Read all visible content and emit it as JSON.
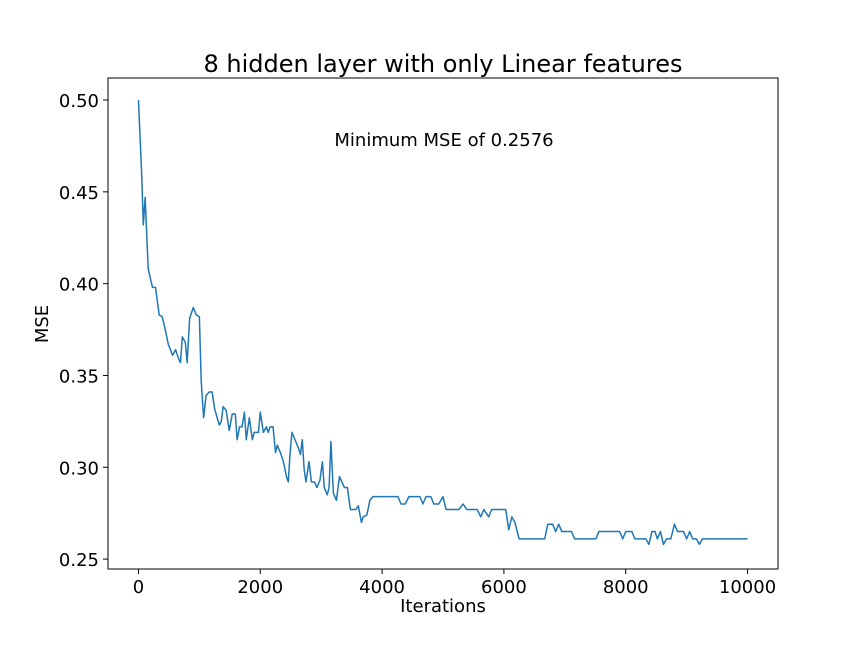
{
  "chart_data": {
    "type": "line",
    "title": "8 hidden layer with only Linear features",
    "annotation": "Minimum MSE of 0.2576",
    "xlabel": "Iterations",
    "ylabel": "MSE",
    "xlim": [
      -500,
      10500
    ],
    "ylim": [
      0.2446,
      0.512
    ],
    "xticks": [
      0,
      2000,
      4000,
      6000,
      8000,
      10000
    ],
    "yticks": [
      0.25,
      {
        "value": 0.3,
        "label": "0.30"
      },
      0.35,
      {
        "value": 0.4,
        "label": "0.40"
      },
      0.45,
      {
        "value": 0.5,
        "label": "0.50"
      }
    ],
    "grid": false,
    "series": [
      {
        "name": "MSE",
        "color": "#1f77b4",
        "x": [
          0,
          50,
          80,
          110,
          160,
          230,
          280,
          340,
          390,
          440,
          490,
          560,
          610,
          660,
          690,
          720,
          770,
          800,
          840,
          900,
          950,
          1000,
          1030,
          1070,
          1110,
          1160,
          1210,
          1250,
          1300,
          1330,
          1360,
          1390,
          1440,
          1490,
          1540,
          1590,
          1620,
          1660,
          1700,
          1740,
          1770,
          1820,
          1870,
          1900,
          1970,
          2000,
          2050,
          2100,
          2130,
          2160,
          2210,
          2250,
          2280,
          2330,
          2380,
          2430,
          2460,
          2490,
          2520,
          2570,
          2620,
          2660,
          2690,
          2720,
          2750,
          2800,
          2840,
          2890,
          2930,
          2980,
          3020,
          3050,
          3100,
          3130,
          3160,
          3200,
          3250,
          3300,
          3340,
          3380,
          3430,
          3480,
          3570,
          3610,
          3660,
          3690,
          3750,
          3800,
          3850,
          4260,
          4310,
          4380,
          4440,
          4620,
          4670,
          4720,
          4800,
          4850,
          4930,
          5000,
          5050,
          5260,
          5330,
          5390,
          5560,
          5620,
          5670,
          5750,
          5800,
          6030,
          6080,
          6130,
          6180,
          6250,
          6670,
          6720,
          6800,
          6850,
          6900,
          6950,
          7110,
          7160,
          7510,
          7560,
          7900,
          7950,
          8000,
          8100,
          8150,
          8330,
          8380,
          8430,
          8480,
          8520,
          8570,
          8620,
          8670,
          8740,
          8800,
          8850,
          8950,
          9000,
          9050,
          9100,
          9160,
          9210,
          9260,
          10000
        ],
        "values": [
          0.5,
          0.462,
          0.432,
          0.447,
          0.408,
          0.398,
          0.398,
          0.383,
          0.382,
          0.375,
          0.367,
          0.361,
          0.364,
          0.359,
          0.357,
          0.371,
          0.368,
          0.357,
          0.381,
          0.387,
          0.383,
          0.382,
          0.347,
          0.327,
          0.339,
          0.341,
          0.341,
          0.332,
          0.326,
          0.323,
          0.325,
          0.333,
          0.331,
          0.32,
          0.329,
          0.329,
          0.315,
          0.322,
          0.322,
          0.33,
          0.315,
          0.327,
          0.315,
          0.319,
          0.319,
          0.33,
          0.319,
          0.322,
          0.319,
          0.322,
          0.322,
          0.308,
          0.312,
          0.308,
          0.303,
          0.295,
          0.292,
          0.308,
          0.319,
          0.315,
          0.311,
          0.307,
          0.315,
          0.299,
          0.292,
          0.303,
          0.292,
          0.292,
          0.289,
          0.293,
          0.303,
          0.289,
          0.285,
          0.289,
          0.314,
          0.286,
          0.282,
          0.295,
          0.292,
          0.289,
          0.289,
          0.277,
          0.277,
          0.279,
          0.27,
          0.273,
          0.274,
          0.282,
          0.284,
          0.284,
          0.28,
          0.28,
          0.284,
          0.284,
          0.28,
          0.284,
          0.284,
          0.28,
          0.28,
          0.284,
          0.277,
          0.277,
          0.28,
          0.277,
          0.277,
          0.273,
          0.277,
          0.273,
          0.277,
          0.277,
          0.266,
          0.273,
          0.27,
          0.261,
          0.261,
          0.269,
          0.269,
          0.265,
          0.269,
          0.265,
          0.265,
          0.261,
          0.261,
          0.265,
          0.265,
          0.261,
          0.265,
          0.265,
          0.261,
          0.261,
          0.258,
          0.265,
          0.265,
          0.261,
          0.265,
          0.258,
          0.261,
          0.261,
          0.269,
          0.265,
          0.265,
          0.261,
          0.265,
          0.261,
          0.261,
          0.258,
          0.261,
          0.261
        ]
      }
    ]
  }
}
